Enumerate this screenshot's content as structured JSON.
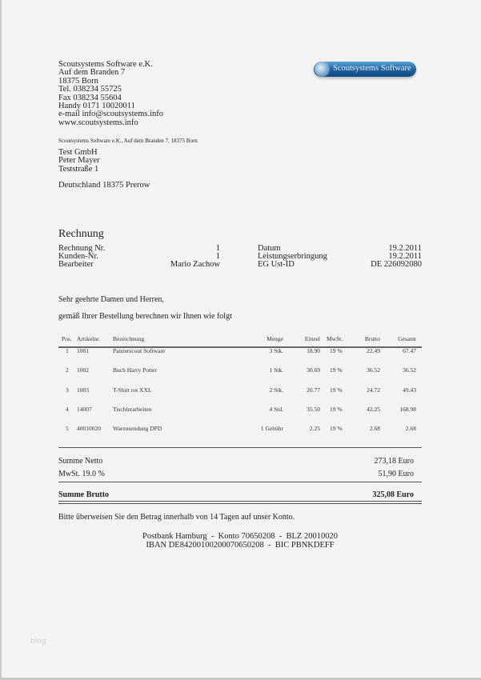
{
  "sender": {
    "lines": [
      "Scoutsystems Software e.K.",
      "Auf dem Branden 7",
      "18375 Born",
      "Tel. 038234 55725",
      "Fax 038234 55604",
      "Handy 0171 10020011",
      "e-mail info@scoutsystems.info",
      "www.scoutsystems.info"
    ],
    "return_address": "Scoutsystems Software e.K., Auf dem Branden 7, 18375 Born"
  },
  "logo": {
    "text": "Scoutsystems Software",
    "color": "#1b5f9e"
  },
  "recipient": {
    "lines": [
      "Test GmbH",
      "Peter Mayer",
      "Teststraße 1"
    ],
    "country_line": "Deutschland 18375 Prerow"
  },
  "invoice": {
    "title": "Rechnung",
    "left": [
      {
        "label": "Rechnung Nr.",
        "value": "1"
      },
      {
        "label": "Kunden-Nr.",
        "value": "1"
      },
      {
        "label": "Bearbeiter",
        "value": "Mario Zachow"
      }
    ],
    "right": [
      {
        "label": "Datum",
        "value": "19.2.2011"
      },
      {
        "label": "Leistungserbringung",
        "value": "19.2.2011"
      },
      {
        "label": "EG Ust-ID",
        "value": "DE 226092080"
      }
    ]
  },
  "greeting": "Sehr geehrte Damen und Herren,",
  "intro": "gemäß Ihrer Bestellung berechnen wir Ihnen wie folgt",
  "table": {
    "headers": {
      "pos": "Pos.",
      "art": "Artikelnr.",
      "desc": "Bezeichnung",
      "qty": "Menge",
      "unit": "Einzel",
      "vat": "MwSt.",
      "gross": "Brutto",
      "total": "Gesamt"
    },
    "rows": [
      {
        "pos": "1",
        "art": "1001",
        "desc": "Panzerscout Software",
        "qty": "3 Stk.",
        "unit": "18.90",
        "vat": "19 %",
        "gross": "22.49",
        "total": "67.47"
      },
      {
        "pos": "2",
        "art": "1002",
        "desc": "Buch Harry Potter",
        "qty": "1 Stk.",
        "unit": "30.69",
        "vat": "19 %",
        "gross": "36.52",
        "total": "36.52"
      },
      {
        "pos": "3",
        "art": "1003",
        "desc": "T-Shirt rot XXL",
        "qty": "2 Stk.",
        "unit": "20.77",
        "vat": "19 %",
        "gross": "24.72",
        "total": "49.43"
      },
      {
        "pos": "4",
        "art": "14007",
        "desc": "Tischlerarbeiten",
        "qty": "4 Std.",
        "unit": "35.50",
        "vat": "19 %",
        "gross": "42.25",
        "total": "168.98"
      },
      {
        "pos": "5",
        "art": "40010020",
        "desc": "Warensendung DPD",
        "qty": "1 Gebühr",
        "unit": "2.25",
        "vat": "19 %",
        "gross": "2.68",
        "total": "2.68"
      }
    ]
  },
  "totals": {
    "net_label": "Summe Netto",
    "net_value": "273,18 Euro",
    "vat_label": "MwSt. 19.0 %",
    "vat_value": "51,90 Euro",
    "gross_label": "Summe Brutto",
    "gross_value": "325,08 Euro"
  },
  "payment_note": "Bitte überweisen Sie den Betrag innerhalb von 14 Tagen auf unser Konto.",
  "bank": {
    "line1": "Postbank Hamburg  -  Konto 70650208  -  BLZ 20010020",
    "line2": "IBAN DE84200100200070650208  -  BIC PBNKDEFF"
  },
  "watermark": "blog"
}
